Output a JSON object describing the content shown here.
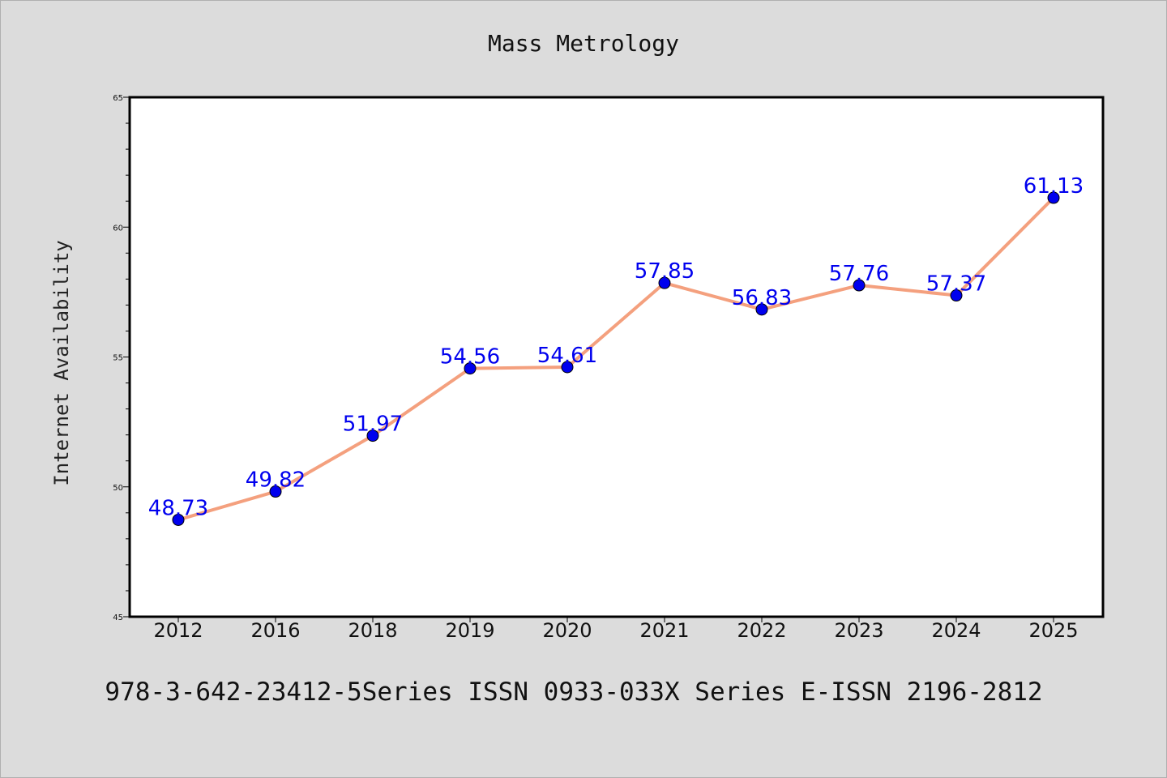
{
  "chart_data": {
    "type": "line",
    "title": "Mass Metrology",
    "xlabel": "",
    "ylabel": "Internet Availability",
    "categories": [
      "2012",
      "2016",
      "2018",
      "2019",
      "2020",
      "2021",
      "2022",
      "2023",
      "2024",
      "2025"
    ],
    "series": [
      {
        "values": [
          48.73,
          49.82,
          51.97,
          54.56,
          54.61,
          57.85,
          56.83,
          57.76,
          57.37,
          61.13
        ]
      }
    ],
    "data_labels": [
      "48.73",
      "49.82",
      "51.97",
      "54.56",
      "54.61",
      "57.85",
      "56.83",
      "57.76",
      "57.37",
      "61.13"
    ],
    "ylim": [
      45,
      65
    ],
    "yticks": [
      45,
      50,
      55,
      60,
      65
    ],
    "grid": false,
    "legend": "none",
    "line_color": "#f4a07e",
    "marker_color": "#0000ee",
    "label_color": "#0000ee",
    "footer": "978-3-642-23412-5Series ISSN 0933-033X Series E-ISSN 2196-2812"
  }
}
